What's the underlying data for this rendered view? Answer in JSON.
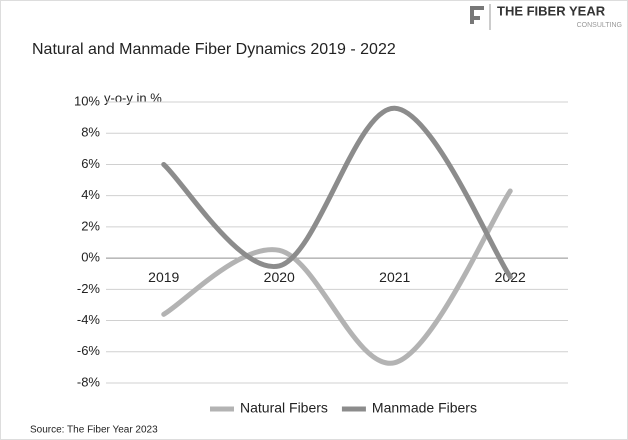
{
  "brand": {
    "name": "THE FIBER YEAR",
    "sub": "CONSULTING"
  },
  "chart_data": {
    "type": "line",
    "title": "Natural and Manmade Fiber Dynamics 2019 - 2022",
    "y_label": "y-o-y in %",
    "source": "Source: The Fiber Year 2023",
    "categories": [
      "2019",
      "2020",
      "2021",
      "2022"
    ],
    "series": [
      {
        "name": "Natural Fibers",
        "color": "#b3b3b3",
        "values": [
          -3.6,
          0.5,
          -6.7,
          4.3
        ]
      },
      {
        "name": "Manmade Fibers",
        "color": "#8c8c8c",
        "values": [
          6.0,
          -0.5,
          9.6,
          -1.2
        ]
      }
    ],
    "ylim": [
      -8,
      10
    ],
    "yticks": [
      {
        "value": -8,
        "label": "-8%"
      },
      {
        "value": -6,
        "label": "-6%"
      },
      {
        "value": -4,
        "label": "-4%"
      },
      {
        "value": -2,
        "label": "-2%"
      },
      {
        "value": 0,
        "label": "0%"
      },
      {
        "value": 2,
        "label": "2%"
      },
      {
        "value": 4,
        "label": "4%"
      },
      {
        "value": 6,
        "label": "6%"
      },
      {
        "value": 8,
        "label": "8%"
      },
      {
        "value": 10,
        "label": "10%"
      }
    ],
    "grid": true,
    "smooth": true,
    "legend": "bottom"
  }
}
